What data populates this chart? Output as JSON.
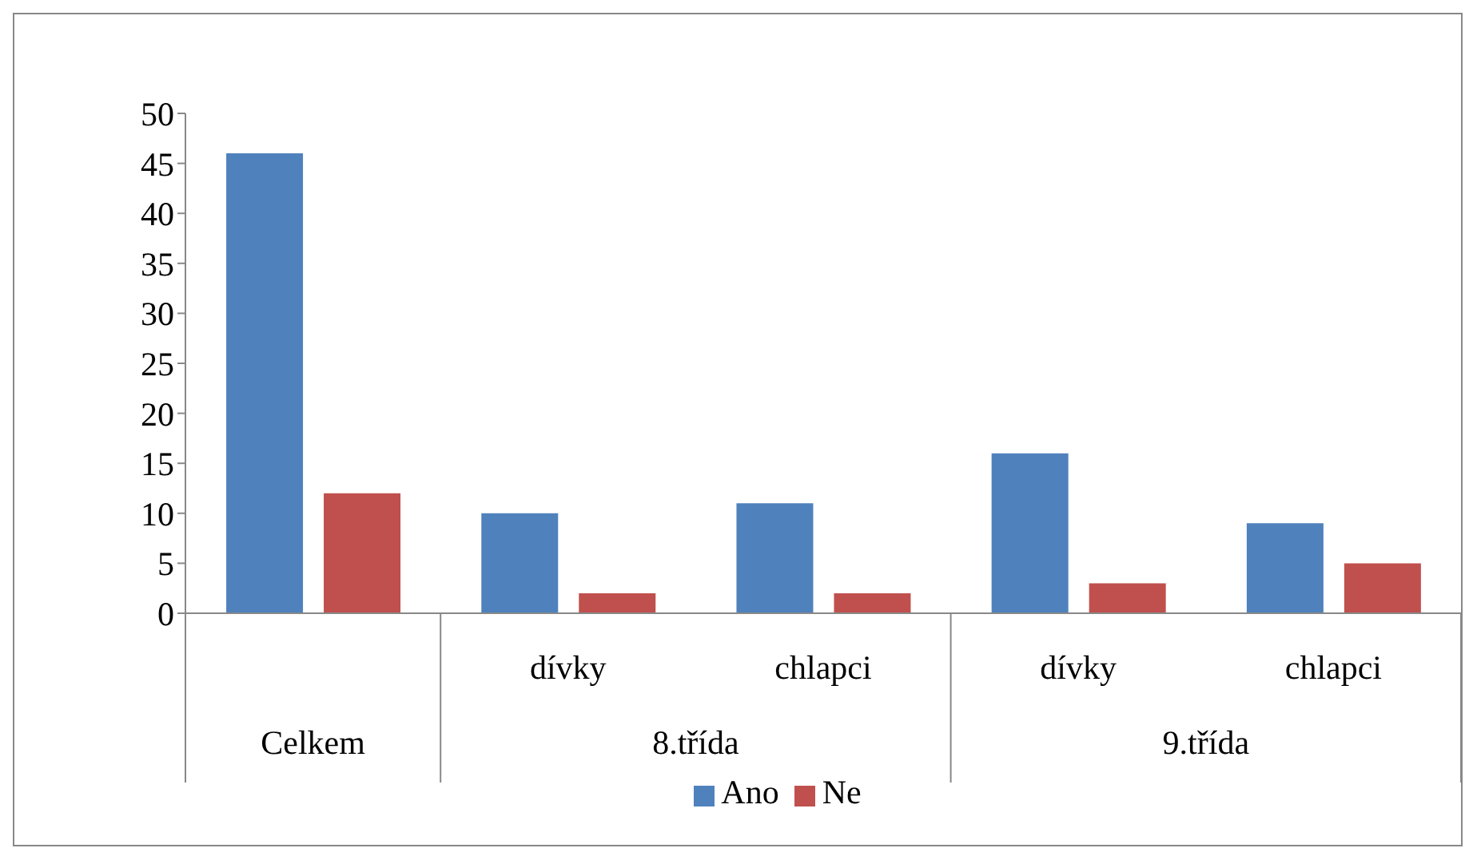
{
  "chart_data": {
    "type": "bar",
    "categories": [
      null,
      "dívky",
      "chlapci",
      "dívky",
      "chlapci"
    ],
    "series": [
      {
        "name": "Ano",
        "color": "#4f81bd",
        "values": [
          46,
          10,
          11,
          16,
          9
        ]
      },
      {
        "name": "Ne",
        "color": "#c0504d",
        "values": [
          12,
          2,
          2,
          3,
          5
        ]
      }
    ],
    "annotations": [
      "Celkem",
      "8.třída",
      "9.třída"
    ],
    "ylim": [
      0,
      50
    ],
    "yticks": [
      0,
      5,
      10,
      15,
      20,
      25,
      30,
      35,
      40,
      45,
      50
    ],
    "grid": false,
    "legend": "bottom"
  }
}
